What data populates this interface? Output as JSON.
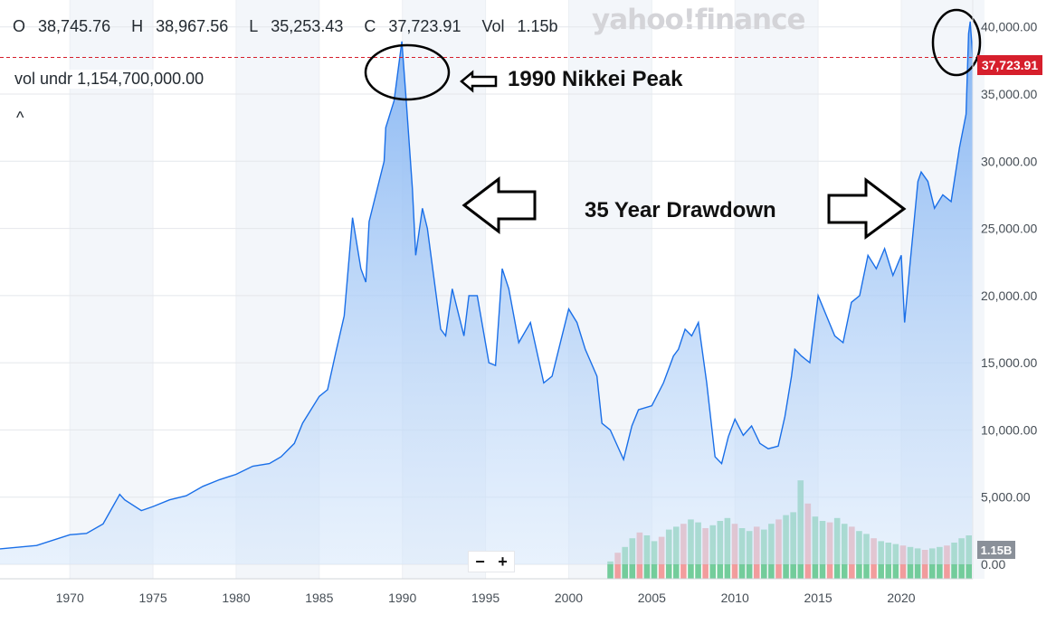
{
  "header": {
    "open_label": "O",
    "open": "38,745.76",
    "high_label": "H",
    "high": "38,967.56",
    "low_label": "L",
    "low": "35,253.43",
    "close_label": "C",
    "close": "37,723.91",
    "vol_label": "Vol",
    "vol": "1.15b",
    "vol_under_label": "vol undr",
    "vol_under": "1,154,700,000.00",
    "collapse_glyph": "^",
    "brand": "yahoo!finance"
  },
  "zoom": {
    "minus": "−",
    "plus": "+"
  },
  "annotations": {
    "peak_label": "1990 Nikkei Peak",
    "drawdown_label": "35 Year Drawdown"
  },
  "price_tag": "37,723.91",
  "volume_tag": "1.15B",
  "colors": {
    "line": "#1a6fe8",
    "area": "#9cc3f5",
    "current_price": "#d61f2c",
    "volume_up": "#5cc48a",
    "volume_down": "#f08c8c"
  },
  "chart_data": {
    "type": "area",
    "x_ticks": [
      "1970",
      "1975",
      "1980",
      "1985",
      "1990",
      "1995",
      "2000",
      "2005",
      "2010",
      "2015",
      "2020"
    ],
    "y_ticks": [
      "0.00",
      "5,000.00",
      "10,000.00",
      "15,000.00",
      "20,000.00",
      "25,000.00",
      "30,000.00",
      "35,000.00",
      "40,000.00"
    ],
    "ylim": [
      0,
      42000
    ],
    "xlim": [
      1965.8,
      2024.3
    ],
    "current_price": 37723.91,
    "series": [
      {
        "x": [
          1965.8,
          1968,
          1970,
          1971,
          1972,
          1973,
          1973.3,
          1974.3,
          1975,
          1976,
          1977,
          1978,
          1979,
          1980,
          1981,
          1982,
          1982.7,
          1983.5,
          1984,
          1985,
          1985.5,
          1986,
          1986.5,
          1987,
          1987.5,
          1987.8,
          1988,
          1988.5,
          1988.9,
          1989,
          1989.5,
          1989.97,
          1990.2,
          1990.6,
          1990.8,
          1991.2,
          1991.5,
          1992.3,
          1992.6,
          1993,
          1993.7,
          1994,
          1994.5,
          1995.2,
          1995.6,
          1996,
          1996.4,
          1997,
          1997.7,
          1998.5,
          1999,
          1999.6,
          2000,
          2000.5,
          2001,
          2001.7,
          2002,
          2002.5,
          2003.3,
          2003.8,
          2004.2,
          2005,
          2005.7,
          2006.3,
          2006.6,
          2007,
          2007.4,
          2007.8,
          2008.3,
          2008.8,
          2009.2,
          2009.6,
          2010,
          2010.5,
          2011,
          2011.5,
          2012,
          2012.6,
          2013,
          2013.4,
          2013.6,
          2014,
          2014.5,
          2015,
          2015.5,
          2016,
          2016.5,
          2017,
          2017.5,
          2018,
          2018.5,
          2019,
          2019.5,
          2020,
          2020.2,
          2020.5,
          2021,
          2021.2,
          2021.6,
          2022,
          2022.5,
          2023,
          2023.5,
          2023.9,
          2024.05,
          2024.15,
          2024.3
        ],
        "values": [
          1150,
          1400,
          2200,
          2300,
          3000,
          5200,
          4800,
          4000,
          4300,
          4800,
          5100,
          5800,
          6300,
          6700,
          7300,
          7500,
          8000,
          9000,
          10500,
          12500,
          13000,
          15800,
          18500,
          25800,
          22000,
          21000,
          25500,
          28000,
          30000,
          32500,
          34500,
          38916,
          35000,
          28000,
          23000,
          26500,
          25000,
          17500,
          17000,
          20500,
          17000,
          20000,
          20000,
          15000,
          14800,
          22000,
          20500,
          16500,
          18000,
          13500,
          14000,
          17000,
          19000,
          18000,
          16000,
          14000,
          10500,
          10000,
          7800,
          10300,
          11500,
          11800,
          13500,
          15500,
          16000,
          17500,
          17000,
          18000,
          13500,
          8000,
          7500,
          9500,
          10800,
          9600,
          10300,
          9000,
          8600,
          8800,
          11000,
          14000,
          16000,
          15500,
          15000,
          20000,
          18500,
          17000,
          16500,
          19500,
          20000,
          23000,
          22000,
          23500,
          21500,
          23000,
          18000,
          22000,
          28500,
          29200,
          28500,
          26500,
          27500,
          27000,
          31000,
          33500,
          39500,
          40400,
          37723.91
        ]
      }
    ],
    "volume": {
      "start": 2002.3,
      "end": 2024.3,
      "ylim": [
        0,
        10000
      ],
      "values": [
        1200,
        1800,
        2200,
        2800,
        3200,
        3000,
        2600,
        2900,
        3400,
        3600,
        3800,
        4100,
        3900,
        3500,
        3700,
        4000,
        4200,
        3800,
        3500,
        3300,
        3600,
        3400,
        3800,
        4100,
        4400,
        4600,
        6800,
        5200,
        4300,
        4000,
        3900,
        4200,
        3800,
        3600,
        3300,
        3100,
        2800,
        2600,
        2500,
        2400,
        2300,
        2200,
        2100,
        2000,
        2100,
        2200,
        2300,
        2500,
        2800,
        3000
      ],
      "down_indices": [
        1,
        4,
        7,
        10,
        13,
        17,
        20,
        23,
        27,
        30,
        33,
        36,
        40,
        43,
        46
      ]
    }
  }
}
